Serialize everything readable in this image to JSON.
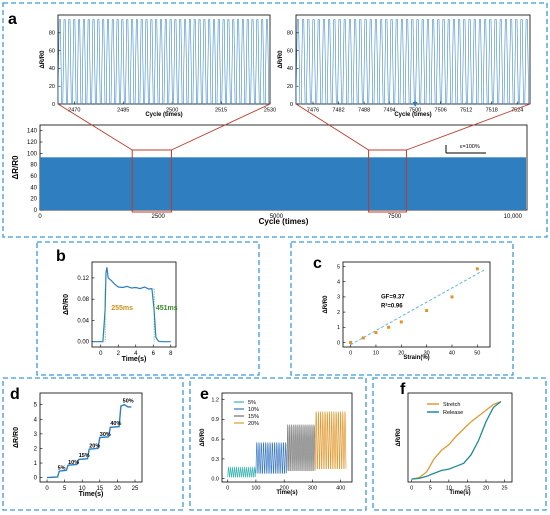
{
  "panels": {
    "a": "a",
    "b": "b",
    "c": "c",
    "d": "d",
    "e": "e",
    "f": "f"
  },
  "colors": {
    "frame": "#3a9ad9",
    "signal": "#2a7fc1",
    "bar_fill": "#2f7fc0",
    "zoom_box": "#c0392b",
    "c_points": "#e8902a",
    "c_fit": "#5fb8d8",
    "d_line": "#2a7fc1",
    "e_series": [
      "#3db5b0",
      "#3a78c2",
      "#707070",
      "#e09a30"
    ],
    "f_stretch": "#e09a30",
    "f_release": "#1f8a9a"
  },
  "chart_data": [
    {
      "id": "a-top-left",
      "type": "line",
      "xlabel": "Cycle (times)",
      "ylabel": "ΔR/R0",
      "xticks": [
        "2470",
        "2485",
        "2500",
        "2515",
        "2530"
      ],
      "yticks": [
        "0",
        "20",
        "40",
        "60",
        "80"
      ],
      "xlim": [
        2465,
        2530
      ],
      "ylim": [
        0,
        100
      ],
      "cycles": 44,
      "peak": 95
    },
    {
      "id": "a-top-right",
      "type": "line",
      "xlabel": "Cycle (times)",
      "ylabel": "ΔR/R0",
      "xticks": [
        "7476",
        "7482",
        "7488",
        "7494",
        "7500",
        "7506",
        "7512",
        "7518",
        "7524"
      ],
      "yticks": [
        "0",
        "20",
        "40",
        "60",
        "80"
      ],
      "xlim": [
        7472,
        7527
      ],
      "ylim": [
        0,
        100
      ],
      "cycles": 45,
      "peak": 95
    },
    {
      "id": "a-bottom",
      "type": "area",
      "xlabel": "Cycle (times)",
      "ylabel": "ΔR/R0",
      "xticks": [
        "0",
        "2500",
        "5000",
        "7500",
        "10,000"
      ],
      "yticks": [
        "0",
        "20",
        "40",
        "60",
        "80",
        "100",
        "120",
        "140"
      ],
      "xlim": [
        0,
        10300
      ],
      "ylim": [
        0,
        150
      ],
      "fill_level": 93,
      "annotation": "ε=100%"
    },
    {
      "id": "b",
      "type": "line",
      "xlabel": "Time(s)",
      "ylabel": "ΔR/R0",
      "xticks": [
        "0",
        "2",
        "4",
        "6",
        "8"
      ],
      "yticks": [
        "0.00",
        "0.04",
        "0.08",
        "0.12"
      ],
      "xlim": [
        -1,
        8.6
      ],
      "ylim": [
        -0.01,
        0.15
      ],
      "annotations": [
        "255ms",
        "451ms"
      ],
      "x": [
        -0.9,
        0.25,
        0.5,
        0.6,
        0.7,
        0.85,
        1.2,
        1.6,
        2.0,
        2.5,
        3.0,
        3.5,
        4.0,
        4.5,
        5.0,
        5.5,
        5.85,
        6.1,
        6.3,
        6.6,
        7.0,
        7.5,
        8.0
      ],
      "y": [
        0.0,
        0.0,
        0.06,
        0.13,
        0.14,
        0.12,
        0.115,
        0.108,
        0.103,
        0.102,
        0.104,
        0.101,
        0.102,
        0.1,
        0.103,
        0.099,
        0.1,
        0.06,
        0.008,
        0.001,
        0.0,
        0.0,
        0.0
      ]
    },
    {
      "id": "c",
      "type": "scatter",
      "xlabel": "Strain(%)",
      "ylabel": "ΔR/R0",
      "xticks": [
        "0",
        "10",
        "20",
        "30",
        "40",
        "50"
      ],
      "yticks": [
        "0",
        "1",
        "2",
        "3",
        "4",
        "5"
      ],
      "xlim": [
        -3,
        55
      ],
      "ylim": [
        -0.3,
        5.3
      ],
      "x": [
        0,
        5,
        10,
        15,
        20,
        30,
        40,
        50
      ],
      "y": [
        0.0,
        0.3,
        0.65,
        1.0,
        1.35,
        2.1,
        3.0,
        4.85
      ],
      "fit": {
        "x": [
          0,
          53
        ],
        "y": [
          -0.15,
          4.8
        ]
      },
      "annotations": [
        "GF=9.37",
        "R²=0.96"
      ]
    },
    {
      "id": "d",
      "type": "line",
      "xlabel": "Time(s)",
      "ylabel": "ΔR/R0",
      "xticks": [
        "0",
        "5",
        "10",
        "15",
        "20",
        "25"
      ],
      "yticks": [
        "0",
        "1",
        "2",
        "3",
        "4",
        "5"
      ],
      "xlim": [
        -2,
        27
      ],
      "ylim": [
        -0.3,
        5.8
      ],
      "x": [
        0,
        3,
        3.5,
        5.5,
        6,
        8.5,
        9,
        11.5,
        12,
        14.5,
        15,
        17.5,
        18,
        20.5,
        21,
        22,
        23,
        24
      ],
      "y": [
        0,
        0.05,
        0.45,
        0.5,
        0.85,
        0.9,
        1.25,
        1.3,
        1.95,
        2.0,
        2.75,
        2.8,
        3.45,
        3.5,
        4.9,
        5.0,
        4.85,
        4.85
      ],
      "annotations": [
        "5%",
        "10%",
        "15%",
        "20%",
        "30%",
        "40%",
        "50%"
      ]
    },
    {
      "id": "e",
      "type": "line",
      "xlabel": "Time(s)",
      "ylabel": "ΔR/R0",
      "xticks": [
        "0",
        "100",
        "200",
        "300",
        "400"
      ],
      "yticks": [
        "0.0",
        "0.3",
        "0.6",
        "0.9",
        "1.2"
      ],
      "xlim": [
        -20,
        440
      ],
      "ylim": [
        -0.05,
        1.3
      ],
      "series": [
        {
          "name": "5%",
          "start": 0,
          "end": 100,
          "peak": 0.17
        },
        {
          "name": "10%",
          "start": 100,
          "end": 210,
          "peak": 0.55
        },
        {
          "name": "15%",
          "start": 210,
          "end": 310,
          "peak": 0.82
        },
        {
          "name": "20%",
          "start": 310,
          "end": 420,
          "peak": 1.02
        }
      ]
    },
    {
      "id": "f",
      "type": "line",
      "xlabel": "Time(s)",
      "ylabel": "ΔR/R0",
      "xticks": [
        "0",
        "5",
        "10",
        "15",
        "20",
        "25"
      ],
      "xlim": [
        -1,
        27
      ],
      "ylim": [
        -0.02,
        0.6
      ],
      "series": [
        {
          "name": "Stretch",
          "x": [
            0,
            2,
            4,
            6,
            8,
            10,
            12,
            14,
            16,
            18,
            20,
            22,
            24
          ],
          "y": [
            0,
            0.01,
            0.05,
            0.14,
            0.2,
            0.24,
            0.3,
            0.35,
            0.4,
            0.44,
            0.48,
            0.52,
            0.54
          ]
        },
        {
          "name": "Release",
          "x": [
            0,
            2,
            4,
            6,
            8,
            10,
            12,
            14,
            16,
            18,
            20,
            22,
            24
          ],
          "y": [
            0,
            0.005,
            0.02,
            0.04,
            0.06,
            0.07,
            0.09,
            0.11,
            0.17,
            0.27,
            0.4,
            0.5,
            0.54
          ]
        }
      ]
    }
  ]
}
